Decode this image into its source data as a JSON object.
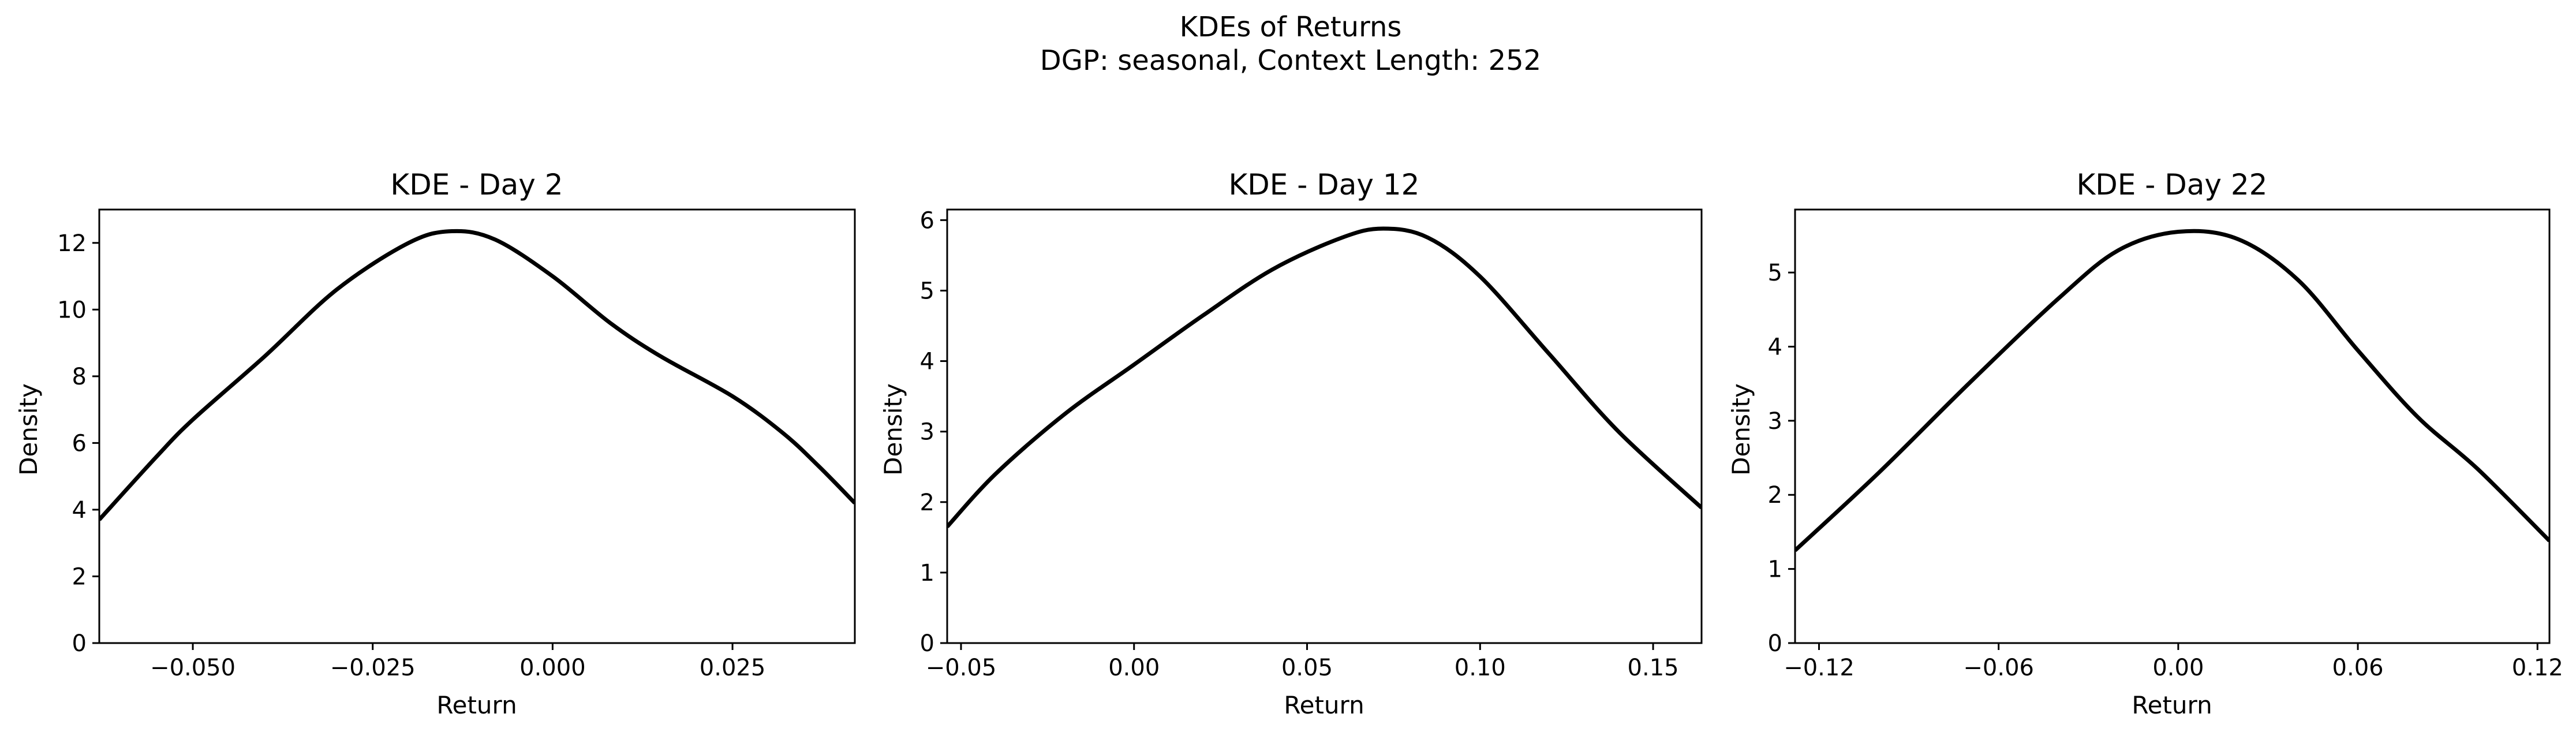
{
  "figure": {
    "title": "KDEs of Returns",
    "subtitle": "DGP: seasonal, Context Length: 252",
    "line_color": "#000000"
  },
  "chart_data": [
    {
      "type": "line",
      "title": "KDE - Day 2",
      "xlabel": "Return",
      "ylabel": "Density",
      "xlim": [
        -0.063,
        0.042
      ],
      "ylim": [
        0,
        13
      ],
      "xticks": [
        -0.05,
        -0.025,
        0.0,
        0.025
      ],
      "xtick_labels": [
        "−0.050",
        "−0.025",
        "0.000",
        "0.025"
      ],
      "yticks": [
        0,
        2,
        4,
        6,
        8,
        10,
        12
      ],
      "ytick_labels": [
        "0",
        "2",
        "4",
        "6",
        "8",
        "10",
        "12"
      ],
      "grid": false,
      "series": [
        {
          "x": [
            -0.063,
            -0.055,
            -0.05,
            -0.04,
            -0.03,
            -0.02,
            -0.014,
            -0.008,
            0.0,
            0.008,
            0.015,
            0.025,
            0.032,
            0.037,
            0.042
          ],
          "y": [
            3.7,
            5.6,
            6.7,
            8.6,
            10.6,
            12.0,
            12.35,
            12.1,
            11.0,
            9.6,
            8.6,
            7.4,
            6.3,
            5.3,
            4.2
          ]
        }
      ]
    },
    {
      "type": "line",
      "title": "KDE - Day 12",
      "xlabel": "Return",
      "ylabel": "Density",
      "xlim": [
        -0.054,
        0.164
      ],
      "ylim": [
        0,
        6.15
      ],
      "xticks": [
        -0.05,
        0.0,
        0.05,
        0.1,
        0.15
      ],
      "xtick_labels": [
        "−0.05",
        "0.00",
        "0.05",
        "0.10",
        "0.15"
      ],
      "yticks": [
        0,
        1,
        2,
        3,
        4,
        5,
        6
      ],
      "ytick_labels": [
        "0",
        "1",
        "2",
        "3",
        "4",
        "5",
        "6"
      ],
      "grid": false,
      "series": [
        {
          "x": [
            -0.054,
            -0.04,
            -0.02,
            0.0,
            0.02,
            0.04,
            0.06,
            0.072,
            0.085,
            0.1,
            0.12,
            0.14,
            0.164
          ],
          "y": [
            1.65,
            2.4,
            3.25,
            3.95,
            4.65,
            5.3,
            5.75,
            5.88,
            5.75,
            5.2,
            4.1,
            3.0,
            1.92
          ]
        }
      ]
    },
    {
      "type": "line",
      "title": "KDE - Day 22",
      "xlabel": "Return",
      "ylabel": "Density",
      "xlim": [
        -0.128,
        0.124
      ],
      "ylim": [
        0,
        5.85
      ],
      "xticks": [
        -0.12,
        -0.06,
        0.0,
        0.06,
        0.12
      ],
      "xtick_labels": [
        "−0.12",
        "−0.06",
        "0.00",
        "0.06",
        "0.12"
      ],
      "yticks": [
        0,
        1,
        2,
        3,
        4,
        5
      ],
      "ytick_labels": [
        "0",
        "1",
        "2",
        "3",
        "4",
        "5"
      ],
      "grid": false,
      "series": [
        {
          "x": [
            -0.128,
            -0.1,
            -0.07,
            -0.04,
            -0.02,
            0.0,
            0.02,
            0.04,
            0.06,
            0.08,
            0.1,
            0.124
          ],
          "y": [
            1.25,
            2.3,
            3.5,
            4.65,
            5.3,
            5.55,
            5.45,
            4.9,
            3.95,
            3.05,
            2.35,
            1.38
          ]
        }
      ]
    }
  ]
}
